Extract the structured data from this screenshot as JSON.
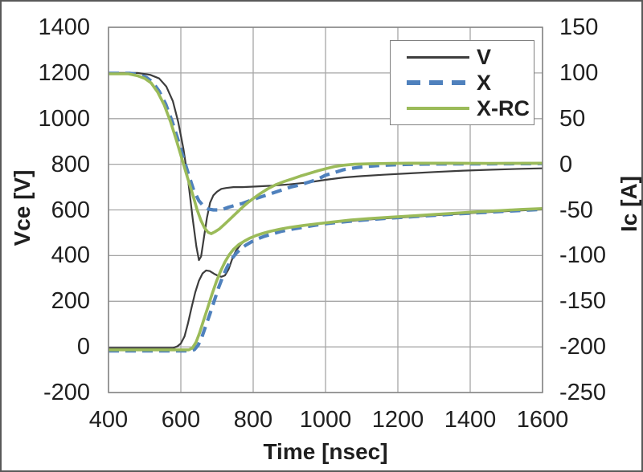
{
  "colors": {
    "series_v": "#3d3d3d",
    "series_x": "#4f81bd",
    "series_xrc": "#9bbb59",
    "gridline": "#a6a6a6",
    "plot_border": "#808080",
    "text": "#1f1f1f",
    "background": "#ffffff"
  },
  "legend": {
    "items": [
      {
        "label": "V",
        "color": "#3d3d3d",
        "dash": "solid",
        "thickness": 3
      },
      {
        "label": "X",
        "color": "#4f81bd",
        "dash": "dashed",
        "thickness": 6
      },
      {
        "label": "X-RC",
        "color": "#9bbb59",
        "dash": "solid",
        "thickness": 4
      }
    ]
  },
  "chart_data": {
    "type": "line",
    "title": "",
    "grid": true,
    "legend_position": "inside-top-right",
    "x_axis": {
      "label": "Time [nsec]",
      "min": 400,
      "max": 1600,
      "tick_step": 200,
      "ticks": [
        400,
        600,
        800,
        1000,
        1200,
        1400,
        1600
      ]
    },
    "y_left": {
      "label": "Vce [V]",
      "min": -200,
      "max": 1400,
      "tick_step": 200,
      "ticks": [
        1400,
        1200,
        1000,
        800,
        600,
        400,
        200,
        0,
        -200
      ]
    },
    "y_right": {
      "label": "Ic [A]",
      "min": -250,
      "max": 150,
      "tick_step": 50,
      "ticks": [
        150,
        100,
        50,
        0,
        -50,
        -100,
        -150,
        -200,
        -250
      ]
    },
    "series": [
      {
        "name": "V (Vce)",
        "legend": "V",
        "axis": "left",
        "unit": "V",
        "color": "#3d3d3d",
        "width": 2.2,
        "dash": "",
        "points": [
          [
            400,
            -5
          ],
          [
            578,
            -5
          ],
          [
            590,
            2
          ],
          [
            600,
            15
          ],
          [
            610,
            45
          ],
          [
            620,
            105
          ],
          [
            630,
            175
          ],
          [
            640,
            240
          ],
          [
            650,
            290
          ],
          [
            660,
            322
          ],
          [
            670,
            335
          ],
          [
            680,
            332
          ],
          [
            692,
            320
          ],
          [
            702,
            312
          ],
          [
            712,
            307
          ],
          [
            722,
            313
          ],
          [
            732,
            340
          ],
          [
            742,
            385
          ],
          [
            752,
            420
          ],
          [
            765,
            448
          ],
          [
            780,
            468
          ],
          [
            795,
            479
          ],
          [
            815,
            493
          ],
          [
            840,
            505
          ],
          [
            870,
            515
          ],
          [
            900,
            523
          ],
          [
            940,
            531
          ],
          [
            980,
            539
          ],
          [
            1020,
            545
          ],
          [
            1070,
            552
          ],
          [
            1120,
            558
          ],
          [
            1180,
            564
          ],
          [
            1240,
            570
          ],
          [
            1300,
            576
          ],
          [
            1360,
            582
          ],
          [
            1420,
            588
          ],
          [
            1480,
            593
          ],
          [
            1540,
            598
          ],
          [
            1600,
            602
          ]
        ]
      },
      {
        "name": "V (Ic)",
        "legend": "V",
        "axis": "right",
        "unit": "A",
        "color": "#3d3d3d",
        "width": 2.2,
        "dash": "",
        "points": [
          [
            400,
            100
          ],
          [
            480,
            100
          ],
          [
            515,
            98
          ],
          [
            540,
            94
          ],
          [
            560,
            85
          ],
          [
            578,
            69
          ],
          [
            593,
            46
          ],
          [
            607,
            17
          ],
          [
            620,
            -17
          ],
          [
            633,
            -60
          ],
          [
            643,
            -90
          ],
          [
            650,
            -105
          ],
          [
            656,
            -101
          ],
          [
            664,
            -80
          ],
          [
            672,
            -59
          ],
          [
            681,
            -42
          ],
          [
            690,
            -34
          ],
          [
            700,
            -30
          ],
          [
            712,
            -27
          ],
          [
            725,
            -26
          ],
          [
            745,
            -25
          ],
          [
            770,
            -25
          ],
          [
            800,
            -24.5
          ],
          [
            850,
            -23.5
          ],
          [
            900,
            -22
          ],
          [
            950,
            -20
          ],
          [
            1000,
            -17
          ],
          [
            1050,
            -14.5
          ],
          [
            1100,
            -13
          ],
          [
            1160,
            -11.5
          ],
          [
            1230,
            -10
          ],
          [
            1300,
            -8.5
          ],
          [
            1380,
            -7
          ],
          [
            1460,
            -6
          ],
          [
            1540,
            -5
          ],
          [
            1600,
            -4.5
          ]
        ]
      },
      {
        "name": "X (Vce)",
        "legend": "X",
        "axis": "left",
        "unit": "V",
        "color": "#4f81bd",
        "width": 4.2,
        "dash": "13 8",
        "points": [
          [
            400,
            -18
          ],
          [
            628,
            -18
          ],
          [
            638,
            -11
          ],
          [
            648,
            8
          ],
          [
            658,
            42
          ],
          [
            668,
            88
          ],
          [
            680,
            142
          ],
          [
            692,
            200
          ],
          [
            704,
            258
          ],
          [
            716,
            308
          ],
          [
            728,
            350
          ],
          [
            740,
            384
          ],
          [
            753,
            410
          ],
          [
            766,
            430
          ],
          [
            780,
            446
          ],
          [
            795,
            460
          ],
          [
            812,
            473
          ],
          [
            832,
            485
          ],
          [
            855,
            496
          ],
          [
            880,
            507
          ],
          [
            908,
            516
          ],
          [
            938,
            524
          ],
          [
            972,
            533
          ],
          [
            1008,
            541
          ],
          [
            1058,
            549
          ],
          [
            1108,
            556
          ],
          [
            1168,
            563
          ],
          [
            1228,
            569
          ],
          [
            1300,
            576
          ],
          [
            1370,
            583
          ],
          [
            1440,
            589
          ],
          [
            1510,
            595
          ],
          [
            1570,
            600
          ],
          [
            1600,
            602
          ]
        ]
      },
      {
        "name": "X (Ic)",
        "legend": "X",
        "axis": "right",
        "unit": "A",
        "color": "#4f81bd",
        "width": 4.2,
        "dash": "13 8",
        "points": [
          [
            400,
            99.5
          ],
          [
            460,
            99.5
          ],
          [
            485,
            98
          ],
          [
            505,
            95
          ],
          [
            522,
            90
          ],
          [
            540,
            80
          ],
          [
            558,
            66
          ],
          [
            576,
            47
          ],
          [
            592,
            27
          ],
          [
            607,
            7
          ],
          [
            622,
            -12
          ],
          [
            636,
            -29
          ],
          [
            650,
            -40
          ],
          [
            663,
            -46
          ],
          [
            676,
            -49
          ],
          [
            690,
            -50
          ],
          [
            705,
            -50
          ],
          [
            718,
            -49
          ],
          [
            732,
            -47
          ],
          [
            750,
            -45
          ],
          [
            770,
            -43
          ],
          [
            790,
            -40
          ],
          [
            812,
            -37
          ],
          [
            835,
            -34
          ],
          [
            858,
            -31
          ],
          [
            880,
            -28
          ],
          [
            903,
            -25
          ],
          [
            925,
            -23
          ],
          [
            950,
            -20
          ],
          [
            975,
            -17
          ],
          [
            1000,
            -12
          ],
          [
            1025,
            -9
          ],
          [
            1050,
            -6
          ],
          [
            1080,
            -4
          ],
          [
            1110,
            -2.5
          ],
          [
            1145,
            -1.5
          ],
          [
            1180,
            -0.8
          ],
          [
            1220,
            -0.2
          ],
          [
            1280,
            0.2
          ],
          [
            1350,
            0.4
          ],
          [
            1450,
            0.5
          ],
          [
            1550,
            0.6
          ],
          [
            1600,
            0.7
          ]
        ]
      },
      {
        "name": "X-RC (Vce)",
        "legend": "X-RC",
        "axis": "left",
        "unit": "V",
        "color": "#9bbb59",
        "width": 3.6,
        "dash": "",
        "points": [
          [
            400,
            -13
          ],
          [
            622,
            -13
          ],
          [
            632,
            -5
          ],
          [
            642,
            20
          ],
          [
            652,
            62
          ],
          [
            662,
            112
          ],
          [
            674,
            170
          ],
          [
            686,
            230
          ],
          [
            698,
            285
          ],
          [
            710,
            332
          ],
          [
            722,
            372
          ],
          [
            734,
            404
          ],
          [
            746,
            428
          ],
          [
            760,
            448
          ],
          [
            775,
            463
          ],
          [
            790,
            476
          ],
          [
            808,
            488
          ],
          [
            828,
            498
          ],
          [
            850,
            507
          ],
          [
            875,
            516
          ],
          [
            900,
            523
          ],
          [
            940,
            532
          ],
          [
            980,
            540
          ],
          [
            1020,
            547
          ],
          [
            1070,
            556
          ],
          [
            1120,
            562
          ],
          [
            1180,
            568
          ],
          [
            1240,
            574
          ],
          [
            1300,
            580
          ],
          [
            1360,
            586
          ],
          [
            1420,
            592
          ],
          [
            1480,
            597
          ],
          [
            1540,
            602
          ],
          [
            1600,
            606
          ]
        ]
      },
      {
        "name": "X-RC (Ic)",
        "legend": "X-RC",
        "axis": "right",
        "unit": "A",
        "color": "#9bbb59",
        "width": 3.6,
        "dash": "",
        "points": [
          [
            400,
            99
          ],
          [
            455,
            99
          ],
          [
            480,
            97
          ],
          [
            500,
            94
          ],
          [
            518,
            89
          ],
          [
            536,
            79
          ],
          [
            554,
            65
          ],
          [
            572,
            46
          ],
          [
            588,
            26
          ],
          [
            603,
            6
          ],
          [
            618,
            -14
          ],
          [
            632,
            -32
          ],
          [
            645,
            -50
          ],
          [
            656,
            -62
          ],
          [
            666,
            -70
          ],
          [
            675,
            -74.5
          ],
          [
            684,
            -76
          ],
          [
            694,
            -74
          ],
          [
            706,
            -71
          ],
          [
            720,
            -66
          ],
          [
            736,
            -60
          ],
          [
            752,
            -54
          ],
          [
            768,
            -48
          ],
          [
            785,
            -42
          ],
          [
            802,
            -37
          ],
          [
            820,
            -32
          ],
          [
            840,
            -27
          ],
          [
            862,
            -22.5
          ],
          [
            885,
            -19
          ],
          [
            908,
            -16
          ],
          [
            930,
            -13
          ],
          [
            955,
            -10
          ],
          [
            980,
            -7
          ],
          [
            1000,
            -5
          ],
          [
            1025,
            -2.5
          ],
          [
            1050,
            -1
          ],
          [
            1080,
            0
          ],
          [
            1120,
            0.5
          ],
          [
            1180,
            1
          ],
          [
            1250,
            1.2
          ],
          [
            1350,
            1.2
          ],
          [
            1450,
            1
          ],
          [
            1600,
            1.2
          ]
        ]
      }
    ]
  }
}
